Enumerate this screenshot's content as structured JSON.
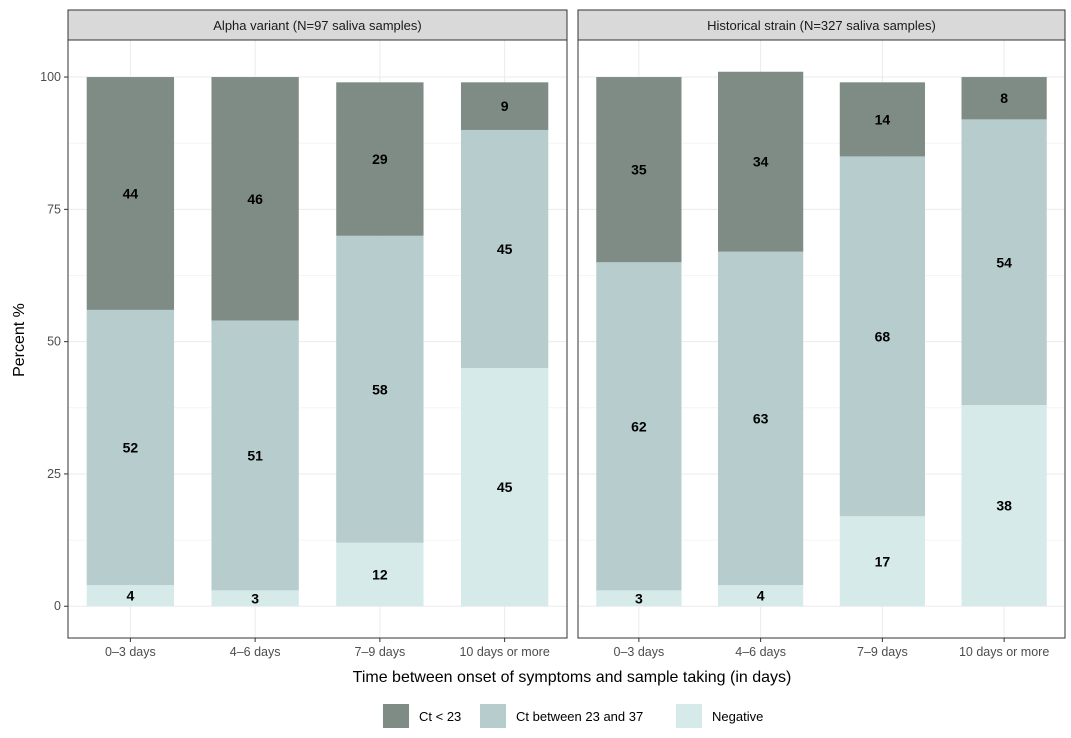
{
  "chart_data": {
    "type": "bar",
    "stacked": true,
    "xlabel": "Time between onset of symptoms and sample taking (in days)",
    "ylabel": "Percent %",
    "ylim": [
      -6,
      107
    ],
    "yticks": [
      0,
      25,
      50,
      75,
      100
    ],
    "categories": [
      "0–3 days",
      "4–6 days",
      "7–9 days",
      "10 days or more"
    ],
    "grid": true,
    "legend_position": "bottom",
    "series_meta": [
      {
        "name": "Ct < 23",
        "color": "#7f8c86"
      },
      {
        "name": "Ct between 23 and 37",
        "color": "#b7cccc"
      },
      {
        "name": "Negative",
        "color": "#d6eaea"
      }
    ],
    "panels": [
      {
        "title": "Alpha variant (N=97 saliva samples)",
        "series": [
          {
            "name": "Negative",
            "values": [
              4,
              3,
              12,
              45
            ]
          },
          {
            "name": "Ct between 23 and 37",
            "values": [
              52,
              51,
              58,
              45
            ]
          },
          {
            "name": "Ct < 23",
            "values": [
              44,
              46,
              29,
              9
            ]
          }
        ]
      },
      {
        "title": "Historical strain (N=327 saliva samples)",
        "series": [
          {
            "name": "Negative",
            "values": [
              3,
              4,
              17,
              38
            ]
          },
          {
            "name": "Ct between 23 and 37",
            "values": [
              62,
              63,
              68,
              54
            ]
          },
          {
            "name": "Ct < 23",
            "values": [
              35,
              34,
              14,
              8
            ]
          }
        ]
      }
    ]
  }
}
